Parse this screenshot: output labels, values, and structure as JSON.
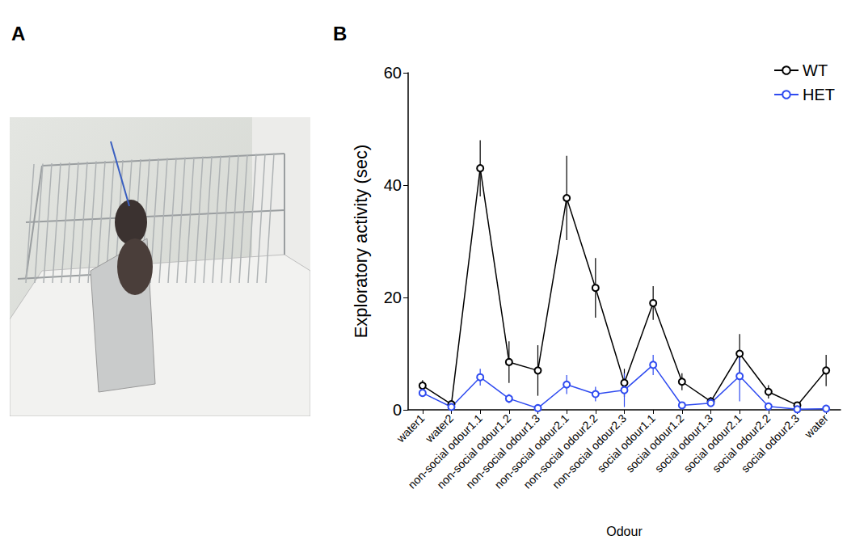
{
  "panel_labels": [
    "A",
    "B"
  ],
  "chart_data": {
    "type": "line",
    "categories": [
      "water1",
      "water2",
      "non-social odour1.1",
      "non-social odour1.2",
      "non-social odour1.3",
      "non-social odour2.1",
      "non-social odour2.2",
      "non-social odour2.3",
      "social odour1.1",
      "social odour1.2",
      "social odour1.3",
      "social odour2.1",
      "social odour2.2",
      "social odour2.3",
      "water"
    ],
    "series": [
      {
        "name": "WT",
        "color": "#000000",
        "marker": "open_circle",
        "values": [
          4.3,
          1.0,
          43.0,
          8.5,
          7.0,
          37.7,
          21.7,
          4.8,
          19.0,
          5.0,
          1.5,
          10.0,
          3.2,
          0.8,
          7.0
        ],
        "errors": [
          1.0,
          0.5,
          5.0,
          3.7,
          4.5,
          7.5,
          5.3,
          2.5,
          3.0,
          1.5,
          0.8,
          3.5,
          1.2,
          0.5,
          2.8
        ]
      },
      {
        "name": "HET",
        "color": "#2f4bf0",
        "marker": "open_circle",
        "values": [
          3.0,
          0.5,
          5.8,
          2.0,
          0.3,
          4.5,
          2.8,
          3.5,
          8.0,
          0.8,
          1.2,
          6.0,
          0.6,
          0.1,
          0.2
        ],
        "errors": [
          0.5,
          0.3,
          1.5,
          0.8,
          0.2,
          1.7,
          1.3,
          3.0,
          1.8,
          0.3,
          0.5,
          4.5,
          0.3,
          0.1,
          0.2
        ]
      }
    ],
    "x_label": "Odour",
    "y_label": "Exploratory activity (sec)",
    "ylim": [
      0,
      60
    ],
    "yticks": [
      0,
      20,
      40,
      60
    ],
    "legend": "top-right",
    "grid": false
  }
}
